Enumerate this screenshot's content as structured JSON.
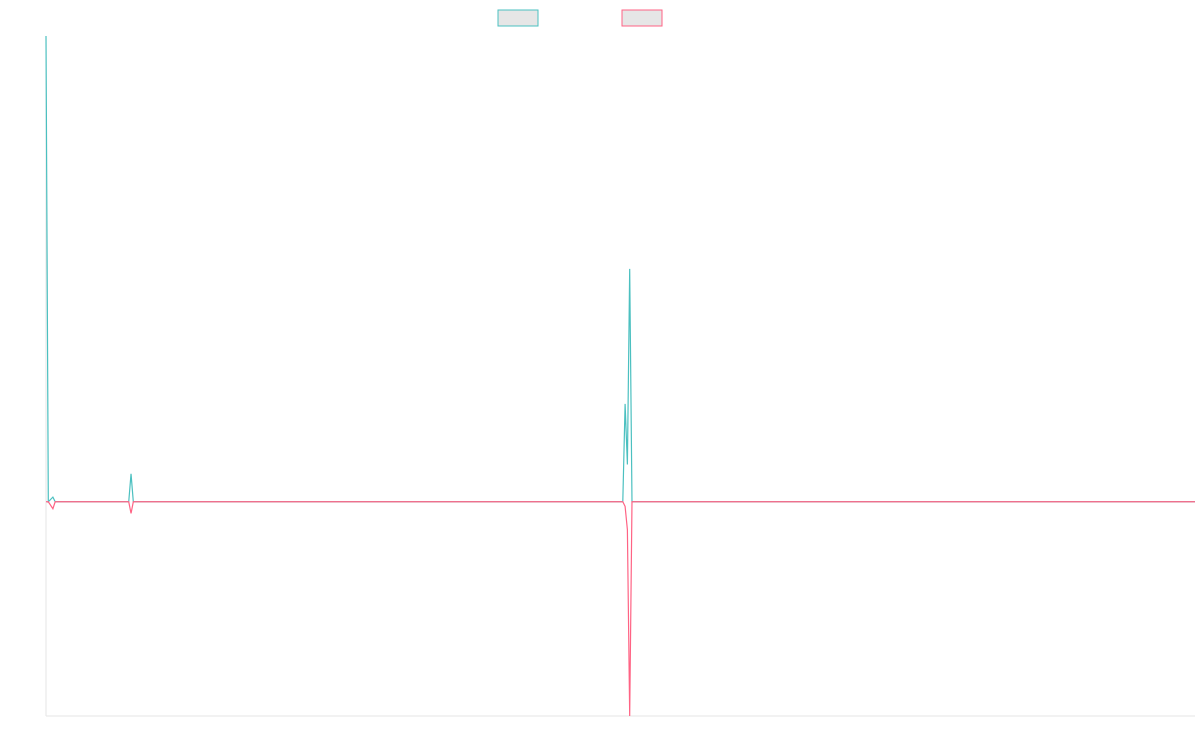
{
  "chart_data": {
    "type": "line",
    "x": [
      0,
      1,
      3,
      4,
      36,
      37,
      38,
      251,
      252,
      253,
      254,
      255,
      500
    ],
    "xlim": [
      0,
      500
    ],
    "ylim": [
      -46,
      100
    ],
    "series": [
      {
        "color": "#4bc0c0",
        "values": [
          100,
          0,
          1,
          0,
          0,
          6,
          0,
          0,
          21,
          8,
          50,
          0,
          0
        ]
      },
      {
        "color": "#ff6384",
        "values": [
          0,
          0,
          -1.5,
          0,
          0,
          -2.5,
          0,
          0,
          -1,
          -6,
          -46,
          0,
          0
        ]
      }
    ],
    "legend": "top"
  }
}
